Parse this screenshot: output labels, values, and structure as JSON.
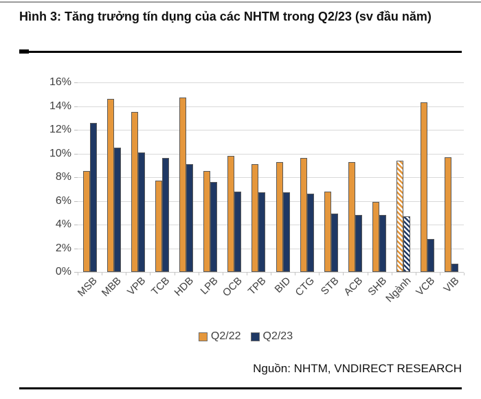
{
  "figure": {
    "title": "Hình 3: Tăng trưởng tín dụng của các NHTM trong Q2/23 (sv đầu năm)",
    "source": "Nguồn: NHTM, VNDIRECT RESEARCH"
  },
  "chart_data": {
    "type": "bar",
    "title": "Hình 3: Tăng trưởng tín dụng của các NHTM trong Q2/23 (sv đầu năm)",
    "categories": [
      "MSB",
      "MBB",
      "VPB",
      "TCB",
      "HDB",
      "LPB",
      "OCB",
      "TPB",
      "BID",
      "CTG",
      "STB",
      "ACB",
      "SHB",
      "Ngành",
      "VCB",
      "VIB"
    ],
    "series": [
      {
        "name": "Q2/22",
        "color": "#E5973C",
        "values": [
          8.5,
          14.6,
          13.5,
          7.7,
          14.7,
          8.5,
          9.8,
          9.1,
          9.3,
          9.6,
          6.8,
          9.3,
          5.9,
          9.4,
          14.3,
          9.7
        ]
      },
      {
        "name": "Q2/23",
        "color": "#1F3864",
        "values": [
          12.6,
          10.5,
          10.1,
          9.6,
          9.1,
          7.6,
          6.8,
          6.7,
          6.7,
          6.6,
          4.9,
          4.8,
          4.8,
          4.7,
          2.8,
          0.7
        ]
      }
    ],
    "hatched_categories": [
      "Ngành"
    ],
    "ylim": [
      0,
      16
    ],
    "ytick_step": 2,
    "ytick_suffix": "%",
    "ytick_labels": [
      "0%",
      "2%",
      "4%",
      "6%",
      "8%",
      "10%",
      "12%",
      "14%",
      "16%"
    ],
    "grid": "horizontal",
    "gridline_color": "#D9D9D9",
    "axis_line_color": "#C9C9C9",
    "axis_text_color": "#404040",
    "bar_border_color": "#595959",
    "legend_position": "bottom"
  }
}
